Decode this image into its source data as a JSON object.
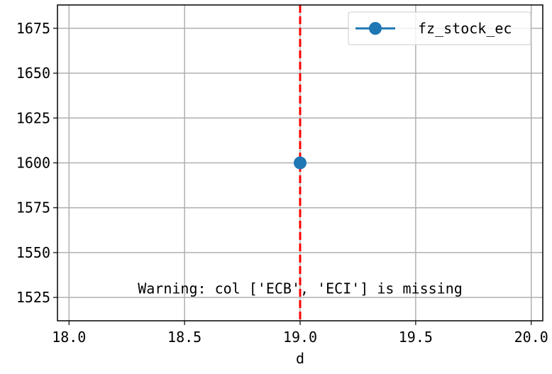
{
  "chart_data": {
    "type": "line",
    "title": "",
    "xlabel": "d",
    "ylabel": "",
    "xlim": [
      17.95,
      20.05
    ],
    "ylim": [
      1512,
      1688
    ],
    "x_ticks": [
      18.0,
      18.5,
      19.0,
      19.5,
      20.0
    ],
    "x_tick_labels": [
      "18.0",
      "18.5",
      "19.0",
      "19.5",
      "20.0"
    ],
    "y_ticks": [
      1525,
      1550,
      1575,
      1600,
      1625,
      1650,
      1675
    ],
    "y_tick_labels": [
      "1525",
      "1550",
      "1575",
      "1600",
      "1625",
      "1650",
      "1675"
    ],
    "grid": true,
    "legend_position": "top-right",
    "series": [
      {
        "name": "fz_stock_ec",
        "color": "#1f77b4",
        "marker": "circle",
        "points": [
          {
            "x": 19.0,
            "y": 1600
          }
        ]
      }
    ],
    "vline": {
      "x": 19.0,
      "color": "#ff0000",
      "style": "dashed"
    },
    "annotation": {
      "text": "Warning: col ['ECB', 'ECI'] is missing",
      "x": 19.0,
      "y": 1530
    }
  }
}
